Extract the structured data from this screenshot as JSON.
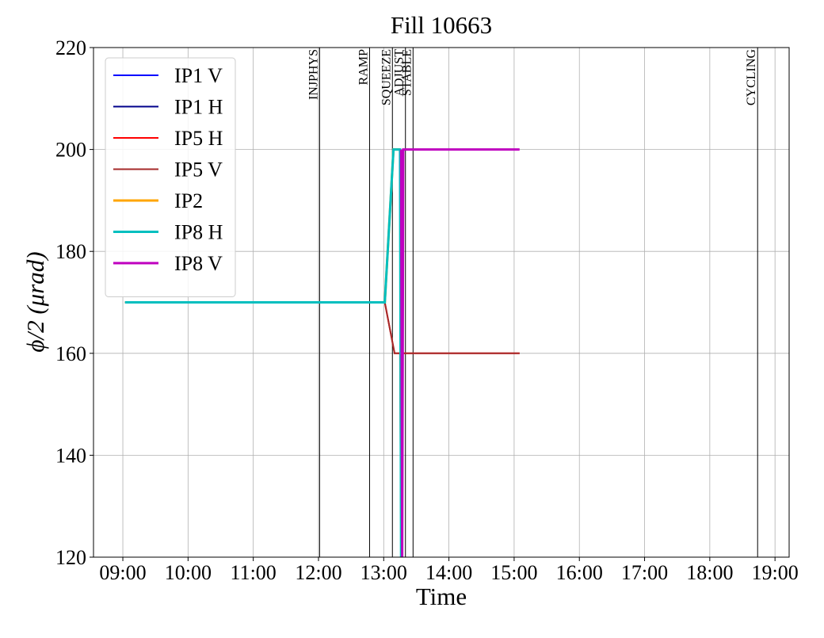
{
  "chart_data": {
    "type": "line",
    "title": "Fill 10663",
    "xlabel": "Time",
    "ylabel": "ϕ/2 (μrad)",
    "xlim": [
      "08:33",
      "19:13"
    ],
    "xticks": [
      "09:00",
      "10:00",
      "11:00",
      "12:00",
      "13:00",
      "14:00",
      "15:00",
      "16:00",
      "17:00",
      "18:00",
      "19:00"
    ],
    "ylim": [
      120,
      220
    ],
    "yticks": [
      120,
      140,
      160,
      180,
      200,
      220
    ],
    "grid": true,
    "legend": "upper left",
    "markers": [
      {
        "label": "INJPHYS",
        "x": "12:01"
      },
      {
        "label": "RAMP",
        "x": "12:47"
      },
      {
        "label": "SQUEEZE",
        "x": "13:08"
      },
      {
        "label": "ADJUST",
        "x": "13:20"
      },
      {
        "label": "STABLE",
        "x": "13:27"
      },
      {
        "label": "CYCLING",
        "x": "18:44"
      }
    ],
    "series": [
      {
        "name": "IP1 V",
        "color": "#0000ff",
        "linewidth": 2,
        "x": [
          "09:02",
          "13:01",
          "13:09",
          "13:15"
        ],
        "values": [
          170,
          170,
          200,
          200
        ]
      },
      {
        "name": "IP1 H",
        "color": "#00008b",
        "linewidth": 2,
        "x": [
          "09:02",
          "13:01",
          "13:09",
          "13:15"
        ],
        "values": [
          170,
          170,
          200,
          200
        ]
      },
      {
        "name": "IP5 H",
        "color": "#ff0000",
        "linewidth": 2,
        "x": [
          "09:02",
          "13:01",
          "13:10",
          "15:05"
        ],
        "values": [
          170,
          170,
          160,
          160
        ]
      },
      {
        "name": "IP5 V",
        "color": "#a52a2a",
        "linewidth": 2,
        "x": [
          "09:02",
          "13:01",
          "13:10",
          "13:15",
          "13:16",
          "13:17",
          "15:05"
        ],
        "values": [
          170,
          170,
          160,
          160,
          120,
          160,
          160
        ]
      },
      {
        "name": "IP2",
        "color": "#ffa500",
        "linewidth": 3,
        "x": [
          "09:02",
          "13:01",
          "13:09",
          "13:15"
        ],
        "values": [
          170,
          170,
          200,
          200
        ]
      },
      {
        "name": "IP8 H",
        "color": "#00bfbf",
        "linewidth": 3,
        "x": [
          "09:02",
          "13:01",
          "13:09",
          "13:15",
          "13:16"
        ],
        "values": [
          170,
          170,
          200,
          200,
          120
        ]
      },
      {
        "name": "IP8 V",
        "color": "#bf00bf",
        "linewidth": 3,
        "x": [
          "13:16",
          "13:17",
          "13:18",
          "15:05"
        ],
        "values": [
          200,
          120,
          200,
          200
        ]
      }
    ]
  }
}
